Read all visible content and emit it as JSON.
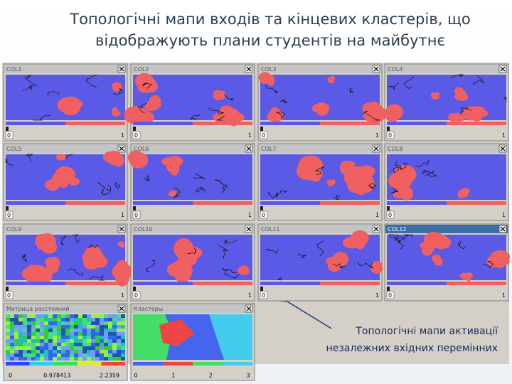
{
  "header": {
    "title_lines": [
      "Топологічні мапи входів та кінцевих кластерів, що",
      "відображують плани студентів на майбутнє"
    ]
  },
  "windows": [
    {
      "title": "COL1",
      "scale": [
        0,
        1
      ]
    },
    {
      "title": "COL2",
      "scale": [
        0,
        1
      ]
    },
    {
      "title": "COL3",
      "scale": [
        0,
        1
      ]
    },
    {
      "title": "COL4",
      "scale": [
        0,
        1
      ]
    },
    {
      "title": "COL5",
      "scale": [
        0,
        1
      ]
    },
    {
      "title": "COL6",
      "scale": [
        0,
        1
      ]
    },
    {
      "title": "COL7",
      "scale": [
        0,
        1
      ]
    },
    {
      "title": "COL8",
      "scale": [
        0,
        1
      ]
    },
    {
      "title": "COL9",
      "scale": [
        0,
        1
      ]
    },
    {
      "title": "COL10",
      "scale": [
        0,
        1
      ]
    },
    {
      "title": "COL11",
      "scale": [
        0,
        1
      ]
    },
    {
      "title": "COL12",
      "scale": [
        0,
        1
      ]
    }
  ],
  "distance_window": {
    "title": "Матрица расстояний",
    "scale": [
      0,
      0.978413,
      2.2359
    ]
  },
  "clusters_window": {
    "title": "Кластеры",
    "scale": [
      0,
      1,
      2,
      3
    ]
  },
  "annotation": {
    "lines": [
      "Топологічні мапи активації",
      "незалежних вхідних перемінних"
    ]
  }
}
